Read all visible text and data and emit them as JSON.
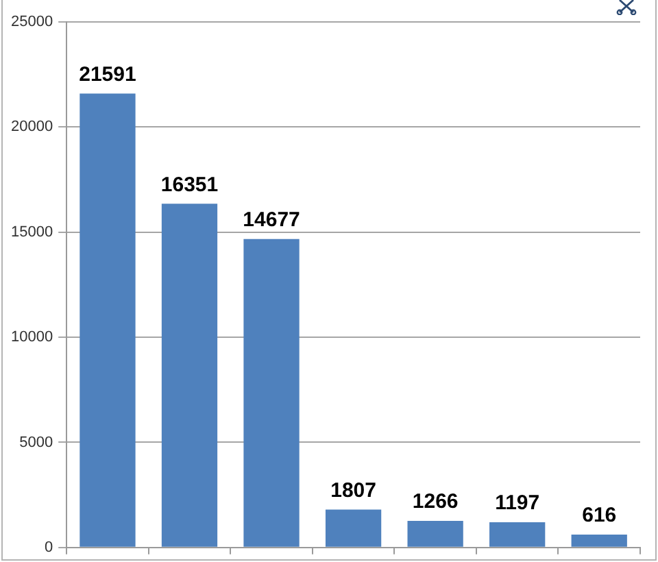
{
  "chart_data": {
    "type": "bar",
    "categories": [
      null,
      null,
      null,
      null,
      null,
      null,
      null
    ],
    "values": [
      21591,
      16351,
      14677,
      1807,
      1266,
      1197,
      616
    ],
    "color": "#4f81bd",
    "ylim": [
      0,
      25000
    ],
    "yticks": [
      0,
      5000,
      10000,
      15000,
      20000,
      25000
    ],
    "grid": "y",
    "data_labels": true
  }
}
